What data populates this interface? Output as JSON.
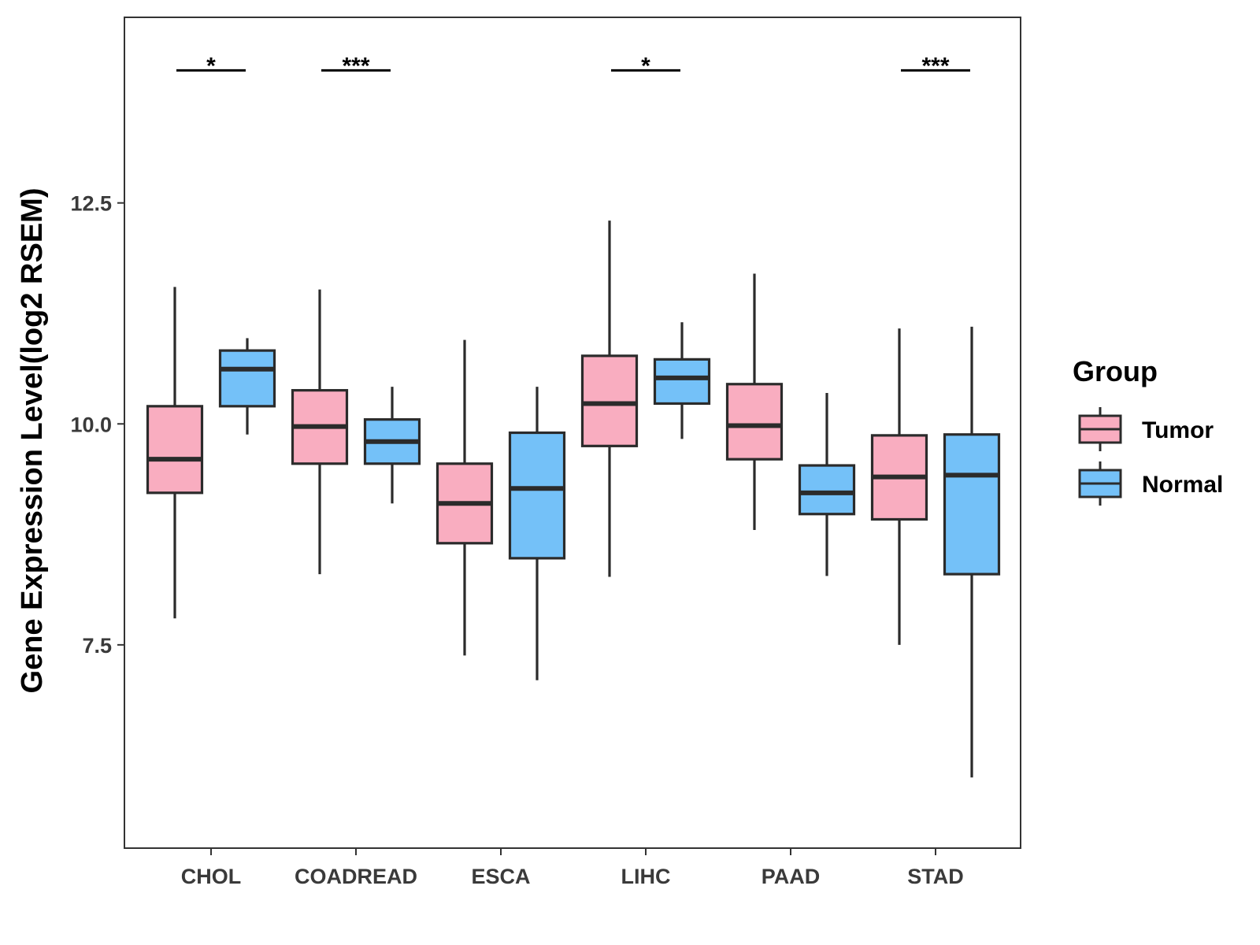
{
  "chart_data": {
    "type": "boxplot",
    "ylabel": "Gene Expression Level(log2 RSEM)",
    "xlabel": "",
    "ylim": [
      5.2,
      14.6
    ],
    "yticks": [
      7.5,
      10.0,
      12.5
    ],
    "ytick_labels": [
      "7.5",
      "10.0",
      "12.5"
    ],
    "categories": [
      "CHOL",
      "COADREAD",
      "ESCA",
      "LIHC",
      "PAAD",
      "STAD"
    ],
    "legend": {
      "title": "Group",
      "position": "right",
      "items": [
        "Tumor",
        "Normal"
      ]
    },
    "colors": {
      "Tumor": "#f9adc0",
      "Normal": "#74c1f8",
      "stroke": "#2b2b2b",
      "frame": "#333333"
    },
    "series": [
      {
        "name": "Tumor",
        "boxes": [
          {
            "min": 7.8,
            "q1": 9.22,
            "median": 9.6,
            "q3": 10.2,
            "max": 11.55
          },
          {
            "min": 8.3,
            "q1": 9.55,
            "median": 9.97,
            "q3": 10.38,
            "max": 11.52
          },
          {
            "min": 7.38,
            "q1": 8.65,
            "median": 9.1,
            "q3": 9.55,
            "max": 10.95
          },
          {
            "min": 8.27,
            "q1": 9.75,
            "median": 10.23,
            "q3": 10.77,
            "max": 12.3
          },
          {
            "min": 8.8,
            "q1": 9.6,
            "median": 9.98,
            "q3": 10.45,
            "max": 11.7
          },
          {
            "min": 7.5,
            "q1": 8.92,
            "median": 9.4,
            "q3": 9.87,
            "max": 11.08
          }
        ]
      },
      {
        "name": "Normal",
        "boxes": [
          {
            "min": 9.88,
            "q1": 10.2,
            "median": 10.62,
            "q3": 10.83,
            "max": 10.97
          },
          {
            "min": 9.1,
            "q1": 9.55,
            "median": 9.8,
            "q3": 10.05,
            "max": 10.42
          },
          {
            "min": 7.1,
            "q1": 8.48,
            "median": 9.27,
            "q3": 9.9,
            "max": 10.42
          },
          {
            "min": 9.83,
            "q1": 10.23,
            "median": 10.52,
            "q3": 10.73,
            "max": 11.15
          },
          {
            "min": 8.28,
            "q1": 8.98,
            "median": 9.22,
            "q3": 9.53,
            "max": 10.35
          },
          {
            "min": 6.0,
            "q1": 8.3,
            "median": 9.42,
            "q3": 9.88,
            "max": 11.1
          }
        ]
      }
    ],
    "significance": [
      {
        "category": "CHOL",
        "label": "*",
        "y": 14.0
      },
      {
        "category": "COADREAD",
        "label": "***",
        "y": 14.0
      },
      {
        "category": "LIHC",
        "label": "*",
        "y": 14.0
      },
      {
        "category": "STAD",
        "label": "***",
        "y": 14.0
      }
    ]
  }
}
